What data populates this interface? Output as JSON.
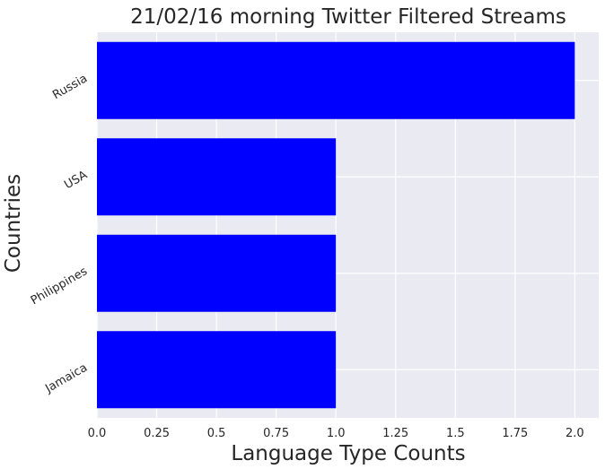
{
  "chart_data": {
    "type": "bar",
    "orientation": "horizontal",
    "title": "21/02/16 morning Twitter Filtered Streams",
    "xlabel": "Language Type Counts",
    "ylabel": "Countries",
    "categories": [
      "Russia",
      "USA",
      "Philippines",
      "Jamaica"
    ],
    "values": [
      2,
      1,
      1,
      1
    ],
    "xlim": [
      0,
      2.1
    ],
    "xticks": [
      "0.0",
      "0.25",
      "0.5",
      "0.75",
      "1.0",
      "1.25",
      "1.5",
      "1.75",
      "2.0"
    ],
    "grid": true,
    "bar_color": "#0000ff",
    "plot_background": "#eaeaf2",
    "grid_color": "#ffffff"
  }
}
